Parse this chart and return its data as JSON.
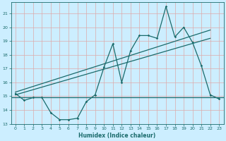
{
  "xlabel": "Humidex (Indice chaleur)",
  "bg_color": "#cceeff",
  "grid_color": "#ddaaaa",
  "line_color": "#1a6b6b",
  "xlim": [
    -0.5,
    23.5
  ],
  "ylim": [
    13.0,
    21.8
  ],
  "yticks": [
    13,
    14,
    15,
    16,
    17,
    18,
    19,
    20,
    21
  ],
  "xticks": [
    0,
    1,
    2,
    3,
    4,
    5,
    6,
    7,
    8,
    9,
    10,
    11,
    12,
    13,
    14,
    15,
    16,
    17,
    18,
    19,
    20,
    21,
    22,
    23
  ],
  "scatter_x": [
    0,
    1,
    2,
    3,
    4,
    5,
    6,
    7,
    8,
    9,
    10,
    11,
    12,
    13,
    14,
    15,
    16,
    17,
    18,
    19,
    20,
    21,
    22,
    23
  ],
  "scatter_y": [
    15.2,
    14.7,
    14.9,
    14.9,
    13.8,
    13.3,
    13.3,
    13.4,
    14.6,
    15.1,
    17.1,
    18.8,
    16.0,
    18.3,
    19.4,
    19.4,
    19.2,
    21.5,
    19.3,
    20.0,
    18.9,
    17.2,
    15.1,
    14.8
  ],
  "trend_x": [
    0,
    22
  ],
  "trend_y": [
    15.1,
    19.2
  ],
  "trend2_x": [
    0,
    22
  ],
  "trend2_y": [
    15.3,
    19.8
  ],
  "hline_y": 14.9
}
